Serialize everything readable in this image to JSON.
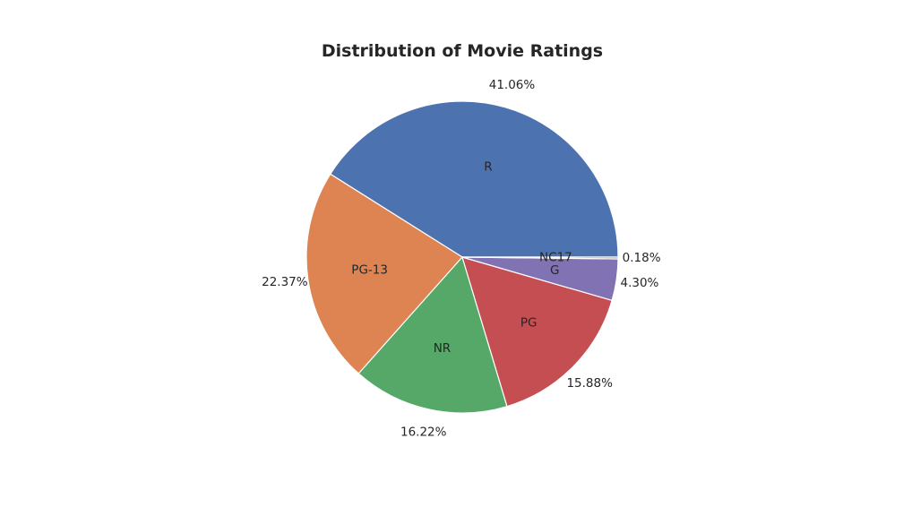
{
  "chart_data": {
    "type": "pie",
    "title": "Distribution of Movie Ratings",
    "slices": [
      {
        "label": "R",
        "value": 41.06,
        "pct_label": "41.06%",
        "color": "#4c72b0"
      },
      {
        "label": "PG-13",
        "value": 22.37,
        "pct_label": "22.37%",
        "color": "#dd8452"
      },
      {
        "label": "NR",
        "value": 16.22,
        "pct_label": "16.22%",
        "color": "#55a868"
      },
      {
        "label": "PG",
        "value": 15.88,
        "pct_label": "15.88%",
        "color": "#c44e52"
      },
      {
        "label": "G",
        "value": 4.3,
        "pct_label": "4.30%",
        "color": "#8172b3"
      },
      {
        "label": "NC17",
        "value": 0.18,
        "pct_label": "0.18%",
        "color": "#937860"
      }
    ],
    "start_angle_deg": 0,
    "direction": "counterclockwise",
    "legend": "none"
  }
}
